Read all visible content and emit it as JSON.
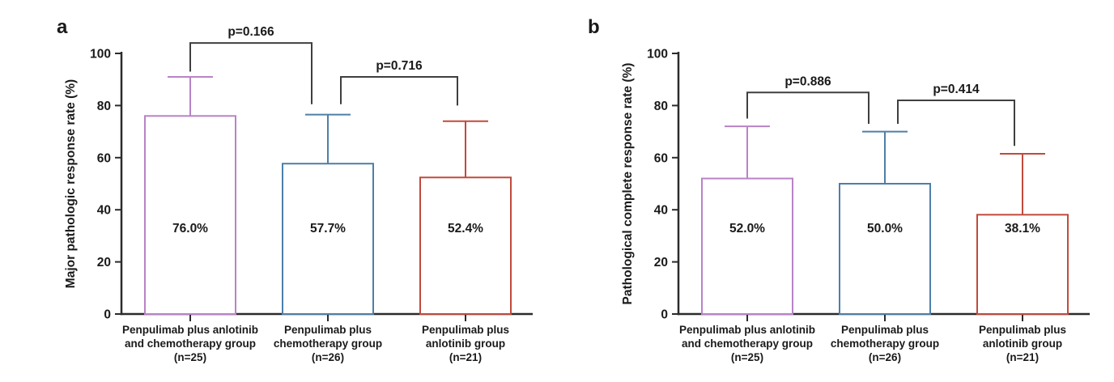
{
  "colors": {
    "group_combo": "#b883c6",
    "group_chemo": "#4e7fa8",
    "group_anlotinib": "#c14a3c",
    "bracket": "#3f3f3f",
    "axis": "#2b2b2b",
    "text": "#1a1a1a",
    "bar_fill": "#ffffff"
  },
  "chart_data": [
    {
      "panel": "a",
      "type": "bar",
      "ylabel": "Major pathologic response rate (%)",
      "ylim": [
        0,
        100
      ],
      "yticks": [
        0,
        20,
        40,
        60,
        80,
        100
      ],
      "grid": false,
      "categories": [
        [
          "Penpulimab plus anlotinib",
          "and chemotherapy group",
          "(n=25)"
        ],
        [
          "Penpulimab plus",
          "chemotherapy group",
          "(n=26)"
        ],
        [
          "Penpulimab plus",
          "anlotinib group",
          "(n=21)"
        ]
      ],
      "values": [
        76.0,
        57.7,
        52.4
      ],
      "value_labels": [
        "76.0%",
        "57.7%",
        "52.4%"
      ],
      "error_tops": [
        91,
        76.5,
        74
      ],
      "bar_color_keys": [
        "group_combo",
        "group_chemo",
        "group_anlotinib"
      ],
      "comparisons": [
        {
          "between": [
            0,
            1
          ],
          "label": "p=0.166",
          "bar_y": 104,
          "drop_left": 93,
          "drop_right": 80.5
        },
        {
          "between": [
            1,
            2
          ],
          "label": "p=0.716",
          "bar_y": 91,
          "drop_left": 80.5,
          "drop_right": 80
        }
      ]
    },
    {
      "panel": "b",
      "type": "bar",
      "ylabel": "Pathological complete response rate (%)",
      "ylim": [
        0,
        100
      ],
      "yticks": [
        0,
        20,
        40,
        60,
        80,
        100
      ],
      "grid": false,
      "categories": [
        [
          "Penpulimab plus anlotinib",
          "and chemotherapy group",
          "(n=25)"
        ],
        [
          "Penpulimab plus",
          "chemotherapy group",
          "(n=26)"
        ],
        [
          "Penpulimab plus",
          "anlotinib group",
          "(n=21)"
        ]
      ],
      "values": [
        52.0,
        50.0,
        38.1
      ],
      "value_labels": [
        "52.0%",
        "50.0%",
        "38.1%"
      ],
      "error_tops": [
        72,
        70,
        61.5
      ],
      "bar_color_keys": [
        "group_combo",
        "group_chemo",
        "group_anlotinib"
      ],
      "comparisons": [
        {
          "between": [
            0,
            1
          ],
          "label": "p=0.886",
          "bar_y": 85,
          "drop_left": 75,
          "drop_right": 73
        },
        {
          "between": [
            1,
            2
          ],
          "label": "p=0.414",
          "bar_y": 82,
          "drop_left": 73,
          "drop_right": 64.5
        }
      ]
    }
  ]
}
